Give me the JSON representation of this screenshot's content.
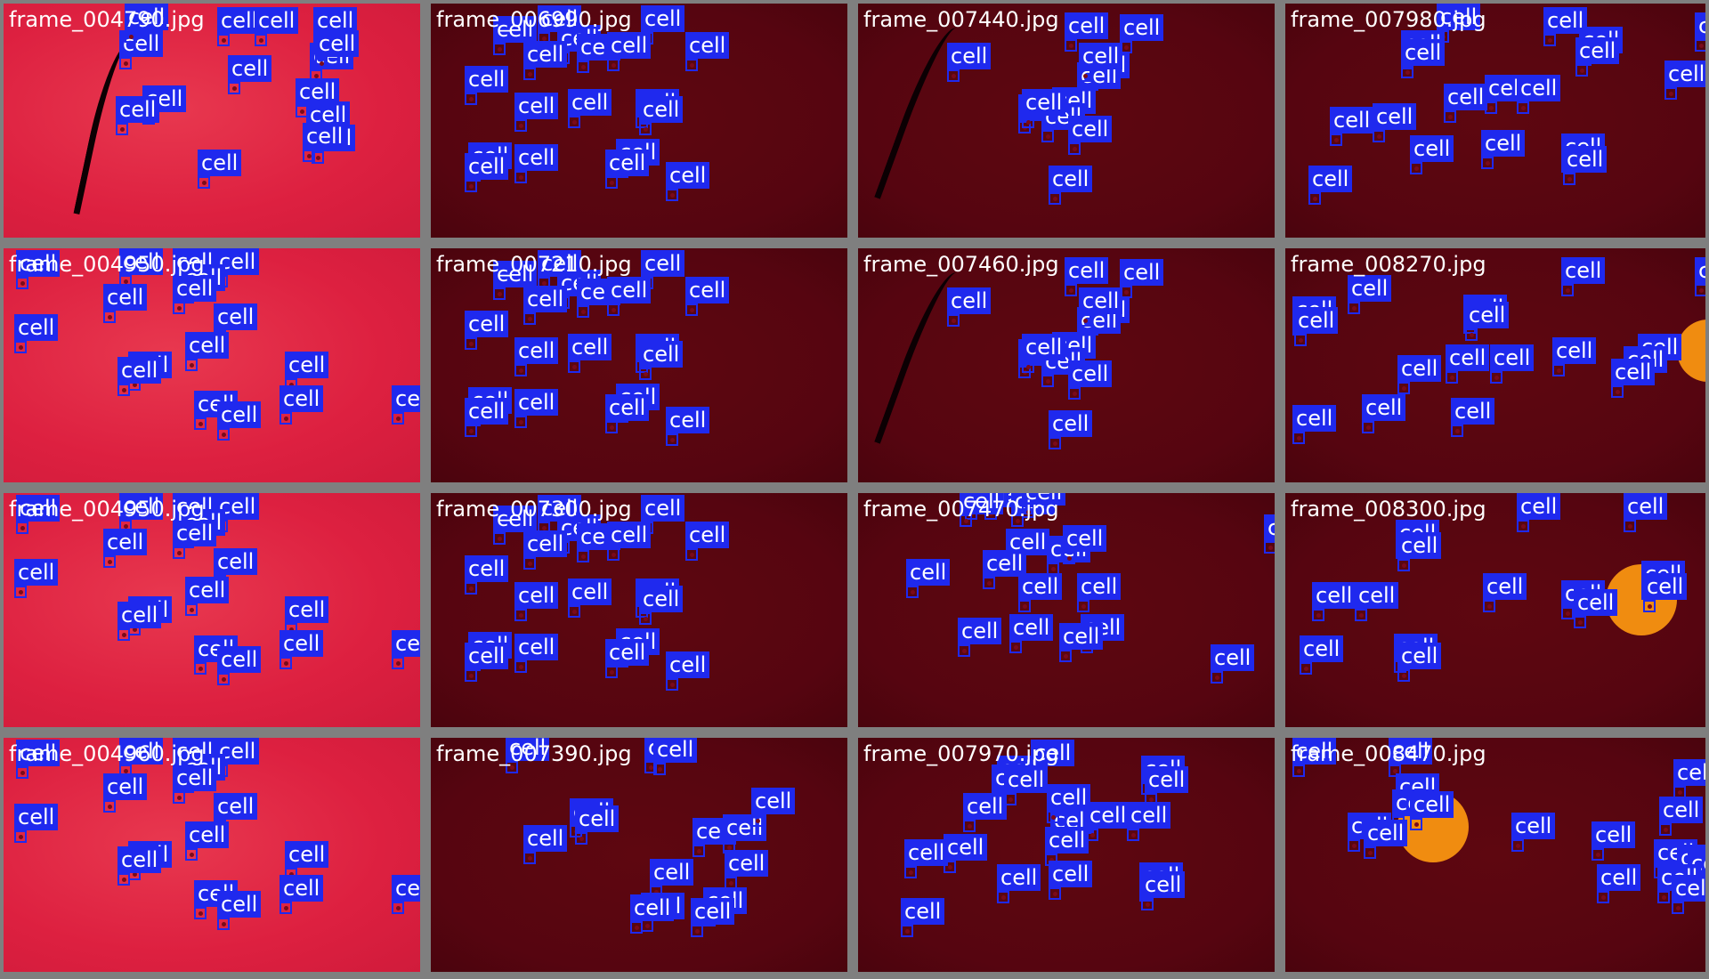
{
  "mosaic": {
    "detection_label": "cell",
    "colors": {
      "border": "#7f7f7f",
      "tag_background": "#1f29ee",
      "tag_text": "#ffffff",
      "light_field": "#dd2040",
      "dark_field": "#560510",
      "orange_object": "#f08c10"
    },
    "tiles": [
      {
        "label": "frame_004790.jpg",
        "tone": "light",
        "detections": 15
      },
      {
        "label": "frame_006990.jpg",
        "tone": "dark",
        "detections": 19
      },
      {
        "label": "frame_007440.jpg",
        "tone": "dark",
        "detections": 12
      },
      {
        "label": "frame_007980.jpg",
        "tone": "dark",
        "detections": 18
      },
      {
        "label": "frame_004950.jpg",
        "tone": "light",
        "detections": 17
      },
      {
        "label": "frame_007210.jpg",
        "tone": "dark",
        "detections": 19
      },
      {
        "label": "frame_007460.jpg",
        "tone": "dark",
        "detections": 12
      },
      {
        "label": "frame_008270.jpg",
        "tone": "dark",
        "detections": 17
      },
      {
        "label": "frame_004950.jpg",
        "tone": "light",
        "detections": 17
      },
      {
        "label": "frame_007300.jpg",
        "tone": "dark",
        "detections": 19
      },
      {
        "label": "frame_007470.jpg",
        "tone": "dark",
        "detections": 19
      },
      {
        "label": "frame_008300.jpg",
        "tone": "dark",
        "detections": 14
      },
      {
        "label": "frame_004960.jpg",
        "tone": "light",
        "detections": 17
      },
      {
        "label": "frame_007390.jpg",
        "tone": "dark",
        "detections": 15
      },
      {
        "label": "frame_007970.jpg",
        "tone": "dark",
        "detections": 19
      },
      {
        "label": "frame_008470.jpg",
        "tone": "dark",
        "detections": 17
      }
    ]
  }
}
